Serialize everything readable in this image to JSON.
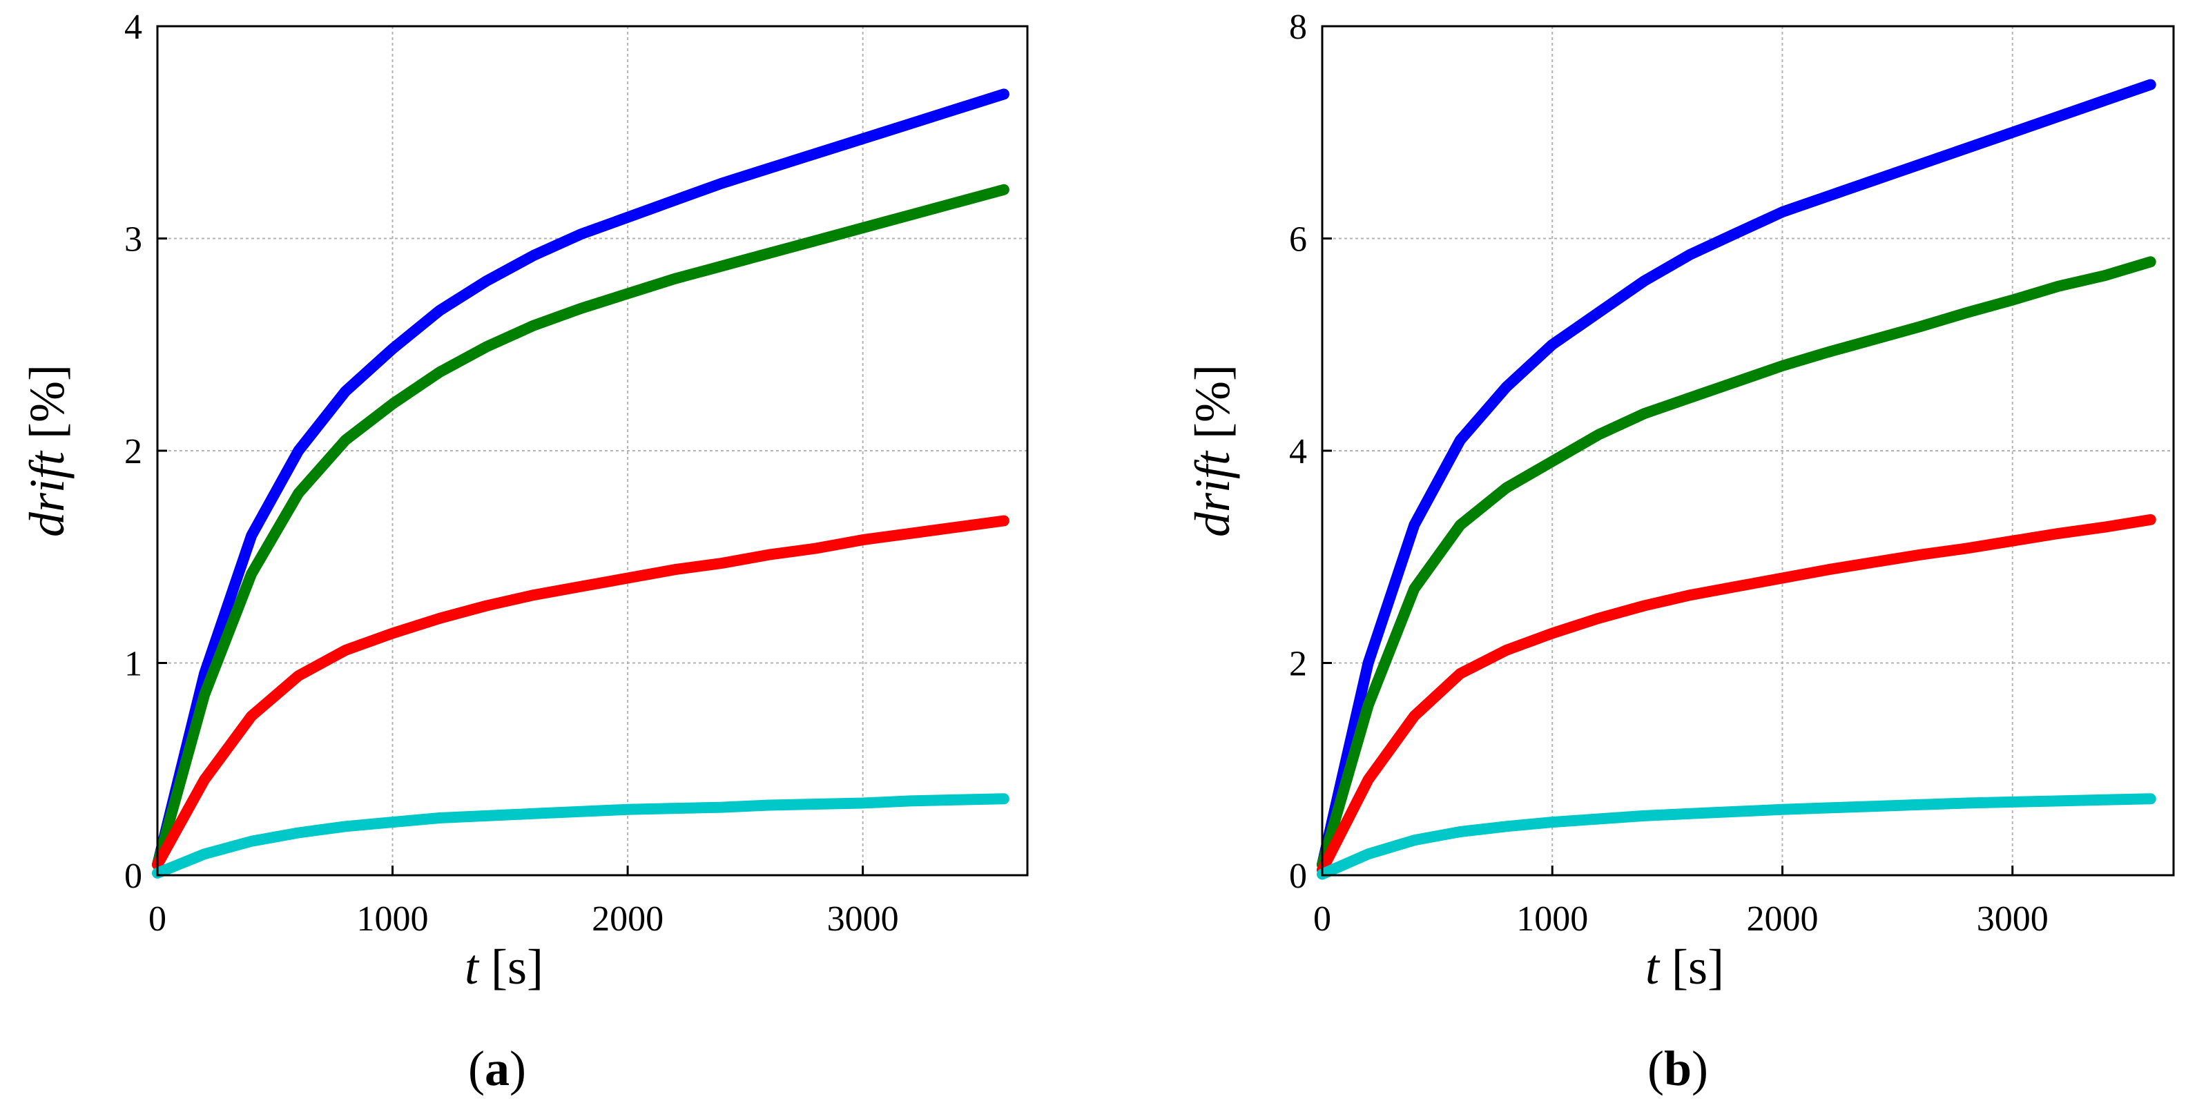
{
  "chart_data": [
    {
      "type": "line",
      "caption_open": "(",
      "caption_letter": "a",
      "caption_close": ")",
      "xlabel_var": "t",
      "xlabel_unit": "[s]",
      "ylabel_var": "drift",
      "ylabel_unit": "[%]",
      "xlim": [
        0,
        3700
      ],
      "ylim": [
        0,
        4
      ],
      "xticks": [
        0,
        1000,
        2000,
        3000
      ],
      "yticks": [
        0,
        1,
        2,
        3,
        4
      ],
      "grid": true,
      "x": [
        0,
        200,
        400,
        600,
        800,
        1000,
        1200,
        1400,
        1600,
        1800,
        2000,
        2200,
        2400,
        2600,
        2800,
        3000,
        3200,
        3400,
        3600
      ],
      "series": [
        {
          "name": "blue",
          "color": "#0000ff",
          "values": [
            0.05,
            0.95,
            1.6,
            2.0,
            2.28,
            2.48,
            2.66,
            2.8,
            2.92,
            3.02,
            3.1,
            3.18,
            3.26,
            3.33,
            3.4,
            3.47,
            3.54,
            3.61,
            3.68
          ]
        },
        {
          "name": "green",
          "color": "#008000",
          "values": [
            0.05,
            0.85,
            1.42,
            1.8,
            2.05,
            2.22,
            2.37,
            2.49,
            2.59,
            2.67,
            2.74,
            2.81,
            2.87,
            2.93,
            2.99,
            3.05,
            3.11,
            3.17,
            3.23
          ]
        },
        {
          "name": "red",
          "color": "#ff0000",
          "values": [
            0.05,
            0.45,
            0.75,
            0.94,
            1.06,
            1.14,
            1.21,
            1.27,
            1.32,
            1.36,
            1.4,
            1.44,
            1.47,
            1.51,
            1.54,
            1.58,
            1.61,
            1.64,
            1.67
          ]
        },
        {
          "name": "cyan",
          "color": "#00c8c8",
          "values": [
            0.01,
            0.1,
            0.16,
            0.2,
            0.23,
            0.25,
            0.27,
            0.28,
            0.29,
            0.3,
            0.31,
            0.315,
            0.32,
            0.33,
            0.335,
            0.34,
            0.35,
            0.355,
            0.36
          ]
        }
      ]
    },
    {
      "type": "line",
      "caption_open": "(",
      "caption_letter": "b",
      "caption_close": ")",
      "xlabel_var": "t",
      "xlabel_unit": "[s]",
      "ylabel_var": "drift",
      "ylabel_unit": "[%]",
      "xlim": [
        0,
        3700
      ],
      "ylim": [
        0,
        8
      ],
      "xticks": [
        0,
        1000,
        2000,
        3000
      ],
      "yticks": [
        0,
        2,
        4,
        6,
        8
      ],
      "grid": true,
      "x": [
        0,
        200,
        400,
        600,
        800,
        1000,
        1200,
        1400,
        1600,
        1800,
        2000,
        2200,
        2400,
        2600,
        2800,
        3000,
        3200,
        3400,
        3600
      ],
      "series": [
        {
          "name": "blue",
          "color": "#0000ff",
          "values": [
            0.1,
            2.0,
            3.3,
            4.1,
            4.6,
            5.0,
            5.3,
            5.6,
            5.85,
            6.05,
            6.25,
            6.4,
            6.55,
            6.7,
            6.85,
            7.0,
            7.15,
            7.3,
            7.45
          ]
        },
        {
          "name": "green",
          "color": "#008000",
          "values": [
            0.1,
            1.6,
            2.7,
            3.3,
            3.65,
            3.9,
            4.15,
            4.35,
            4.5,
            4.65,
            4.8,
            4.93,
            5.05,
            5.17,
            5.3,
            5.42,
            5.55,
            5.65,
            5.78
          ]
        },
        {
          "name": "red",
          "color": "#ff0000",
          "values": [
            0.05,
            0.9,
            1.5,
            1.9,
            2.12,
            2.28,
            2.42,
            2.54,
            2.64,
            2.72,
            2.8,
            2.88,
            2.95,
            3.02,
            3.08,
            3.15,
            3.22,
            3.28,
            3.35
          ]
        },
        {
          "name": "cyan",
          "color": "#00c8c8",
          "values": [
            0.01,
            0.2,
            0.33,
            0.41,
            0.46,
            0.5,
            0.53,
            0.56,
            0.58,
            0.6,
            0.62,
            0.635,
            0.65,
            0.665,
            0.68,
            0.69,
            0.7,
            0.71,
            0.72
          ]
        }
      ]
    }
  ]
}
